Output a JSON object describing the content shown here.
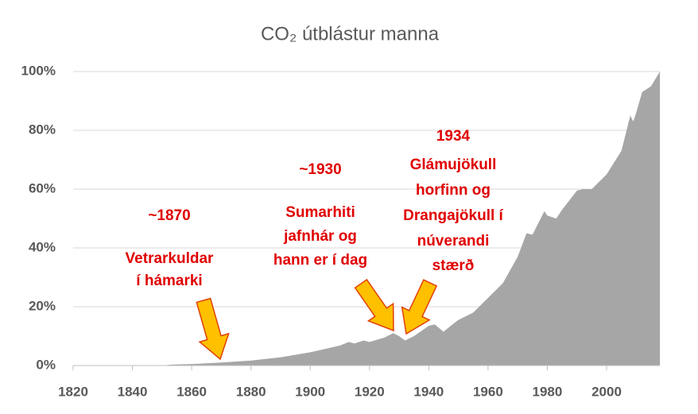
{
  "chart_data": {
    "type": "area",
    "title": "CO₂ útblástur manna",
    "x": [
      1820,
      1850,
      1853,
      1860,
      1870,
      1880,
      1890,
      1900,
      1910,
      1913,
      1915,
      1918,
      1920,
      1925,
      1928,
      1930,
      1932,
      1935,
      1940,
      1942,
      1945,
      1948,
      1950,
      1955,
      1960,
      1965,
      1970,
      1973,
      1975,
      1979,
      1980,
      1983,
      1985,
      1990,
      1992,
      1995,
      2000,
      2005,
      2008,
      2009,
      2010,
      2012,
      2015,
      2018
    ],
    "values": [
      0,
      0,
      0.3,
      0.5,
      1.0,
      1.7,
      2.8,
      4.5,
      6.8,
      8,
      7.5,
      8.5,
      8,
      9.5,
      11,
      10,
      8.5,
      10,
      13.5,
      14,
      11.5,
      14,
      15.5,
      18,
      23,
      28,
      37,
      45,
      44.5,
      52.5,
      51,
      50,
      53,
      59.5,
      60,
      60,
      65,
      73,
      85,
      83,
      86,
      93,
      95,
      100
    ],
    "color": "#a6a6a6",
    "xlim": [
      1820,
      2018
    ],
    "xticks": [
      1820,
      1840,
      1860,
      1880,
      1900,
      1920,
      1940,
      1960,
      1980,
      2000
    ],
    "ylim": [
      0,
      100
    ],
    "yticks": [
      {
        "value": 0,
        "label": "0%"
      },
      {
        "value": 20,
        "label": "20%"
      },
      {
        "value": 40,
        "label": "40%"
      },
      {
        "value": 60,
        "label": "60%"
      },
      {
        "value": 80,
        "label": "80%"
      },
      {
        "value": 100,
        "label": "100%"
      }
    ],
    "grid": true,
    "annotations": [
      {
        "heading": "~1870",
        "lines": [
          "Vetrarkuldar",
          "í hámarki"
        ]
      },
      {
        "heading": "~1930",
        "lines": [
          "Sumarhiti",
          "jafnhár og",
          "hann er í dag"
        ]
      },
      {
        "heading": "1934",
        "lines": [
          "Glámujökull",
          "horfinn og",
          "Drangajökull í",
          "núverandi",
          "stærð"
        ]
      }
    ]
  }
}
